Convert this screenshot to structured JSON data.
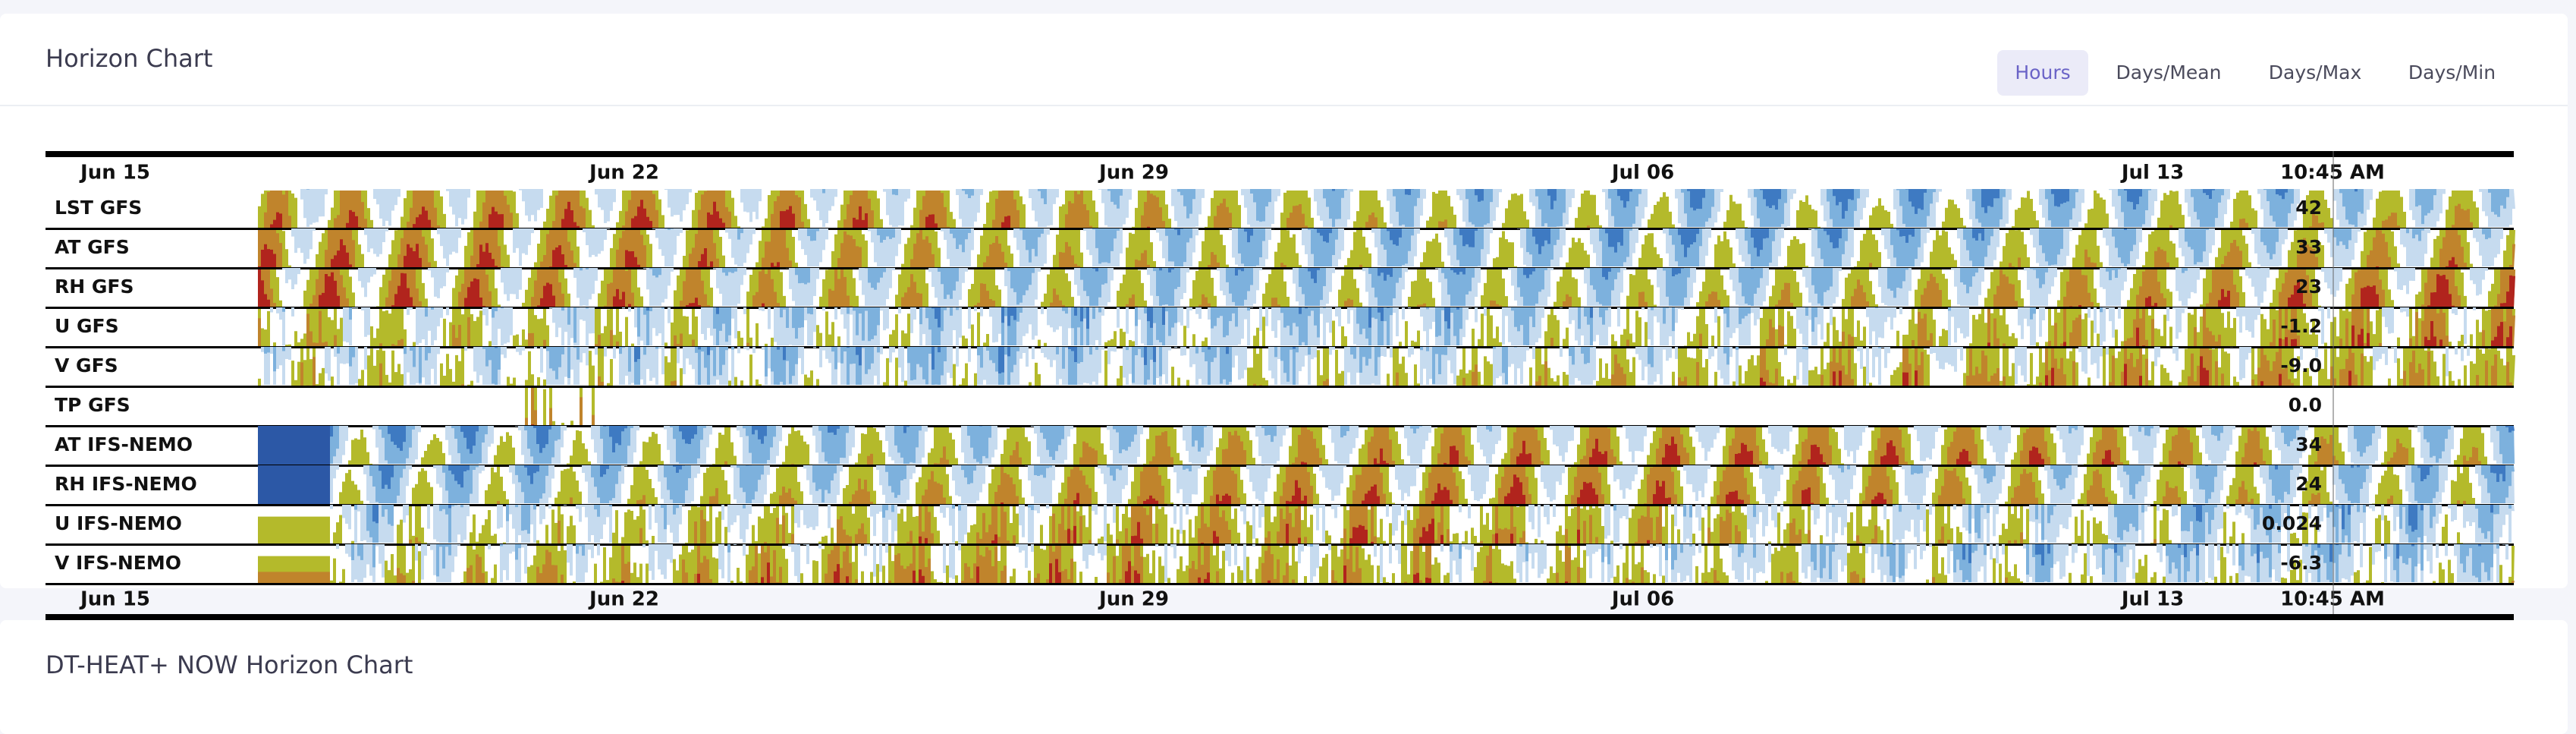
{
  "header": {
    "title": "Horizon Chart",
    "tabs": [
      "Hours",
      "Days/Mean",
      "Days/Max",
      "Days/Min"
    ]
  },
  "chart": {
    "date_labels": [
      "Jun 15",
      "Jun 22",
      "Jun 29",
      "Jul 06",
      "Jul 13"
    ],
    "cursor_label": "10:45 AM",
    "rows": [
      {
        "label": "LST GFS",
        "value": "42"
      },
      {
        "label": "AT GFS",
        "value": "33"
      },
      {
        "label": "RH GFS",
        "value": "23"
      },
      {
        "label": "U GFS",
        "value": "-1.2"
      },
      {
        "label": "V GFS",
        "value": "-9.0"
      },
      {
        "label": "TP GFS",
        "value": "0.0"
      },
      {
        "label": "AT IFS-NEMO",
        "value": "34"
      },
      {
        "label": "RH IFS-NEMO",
        "value": "24"
      },
      {
        "label": "U IFS-NEMO",
        "value": "0.024"
      },
      {
        "label": "V IFS-NEMO",
        "value": "-6.3"
      }
    ]
  },
  "second_panel": {
    "title": "DT-HEAT+ NOW Horizon Chart"
  }
}
